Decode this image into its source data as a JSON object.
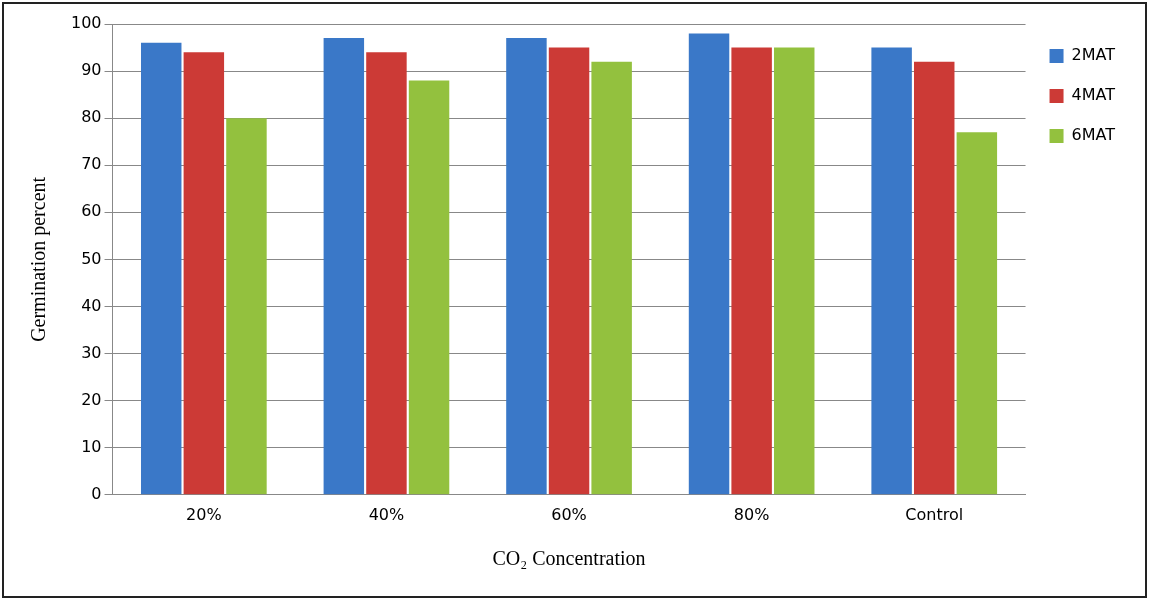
{
  "chart_data": {
    "type": "bar",
    "xlabel": "CO₂ Concentration",
    "ylabel": "Germination percent",
    "categories": [
      "20%",
      "40%",
      "60%",
      "80%",
      "Control"
    ],
    "series": [
      {
        "name": "2MAT",
        "color": "#3a78c8",
        "values": [
          96,
          97,
          97,
          98,
          95
        ]
      },
      {
        "name": "4MAT",
        "color": "#cc3a36",
        "values": [
          94,
          94,
          95,
          95,
          92
        ]
      },
      {
        "name": "6MAT",
        "color": "#93c13e",
        "values": [
          80,
          88,
          92,
          95,
          77
        ]
      }
    ],
    "ylim": [
      0,
      100
    ],
    "yticks": [
      0,
      10,
      20,
      30,
      40,
      50,
      60,
      70,
      80,
      90,
      100
    ],
    "grid": "y",
    "legend": "right"
  }
}
